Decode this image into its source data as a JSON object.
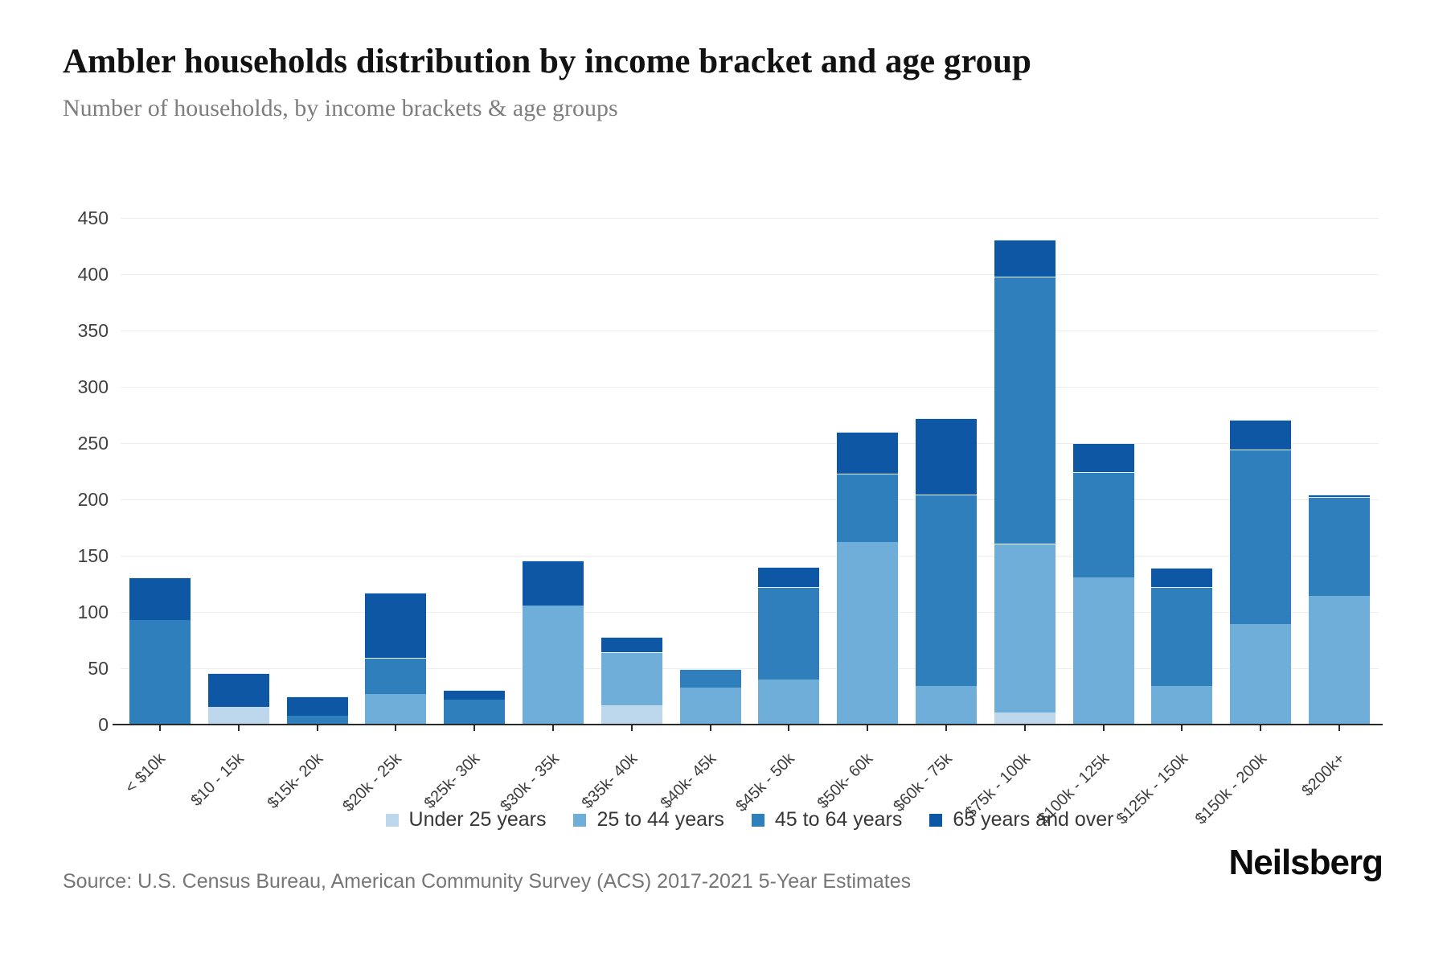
{
  "header": {
    "title": "Ambler households distribution by income bracket and age group",
    "subtitle": "Number of households, by income brackets & age groups"
  },
  "footer": {
    "source": "Source: U.S. Census Bureau, American Community Survey (ACS) 2017-2021 5-Year Estimates",
    "brand": "Neilsberg"
  },
  "chart_data": {
    "type": "bar",
    "variant": "stacked-vertical",
    "title": "Ambler households distribution by income bracket and age group",
    "subtitle": "Number of households, by income brackets & age groups",
    "xlabel": "",
    "ylabel": "",
    "ylim": [
      0,
      450
    ],
    "ytick_step": 50,
    "yticks": [
      0,
      50,
      100,
      150,
      200,
      250,
      300,
      350,
      400,
      450
    ],
    "grid": "horizontal",
    "legend_position": "bottom-center",
    "categories": [
      "< $10k",
      "$10 - 15k",
      "$15k- 20k",
      "$20k - 25k",
      "$25k- 30k",
      "$30k - 35k",
      "$35k- 40k",
      "$40k- 45k",
      "$45k - 50k",
      "$50k- 60k",
      "$60k - 75k",
      "$75k - 100k",
      "$100k - 125k",
      "$125k - 150k",
      "$150k - 200k",
      "$200k+"
    ],
    "series": [
      {
        "name": "Under 25 years",
        "color": "#bdd7ec",
        "values": [
          0,
          16,
          0,
          0,
          0,
          0,
          17,
          0,
          0,
          0,
          0,
          11,
          0,
          0,
          0,
          0
        ]
      },
      {
        "name": "25 to 44 years",
        "color": "#6faed9",
        "values": [
          0,
          0,
          0,
          27,
          0,
          106,
          47,
          33,
          40,
          162,
          34,
          150,
          131,
          34,
          89,
          114
        ]
      },
      {
        "name": "45 to 64 years",
        "color": "#2f7fbc",
        "values": [
          93,
          0,
          8,
          32,
          22,
          0,
          0,
          16,
          82,
          61,
          170,
          237,
          93,
          88,
          155,
          88
        ]
      },
      {
        "name": "65 years and over",
        "color": "#0d57a5",
        "values": [
          38,
          30,
          17,
          58,
          9,
          40,
          14,
          0,
          18,
          37,
          68,
          33,
          26,
          17,
          27,
          2
        ]
      }
    ],
    "totals": [
      131,
      46,
      25,
      117,
      31,
      146,
      78,
      49,
      140,
      260,
      272,
      431,
      250,
      139,
      271,
      204
    ],
    "colors": {
      "axis": "#2a2a2a",
      "gridline": "#ededed",
      "tick_text": "#404040",
      "segment_divider": "#ffffff"
    }
  },
  "layout_note": "values are household counts read from gridlines"
}
